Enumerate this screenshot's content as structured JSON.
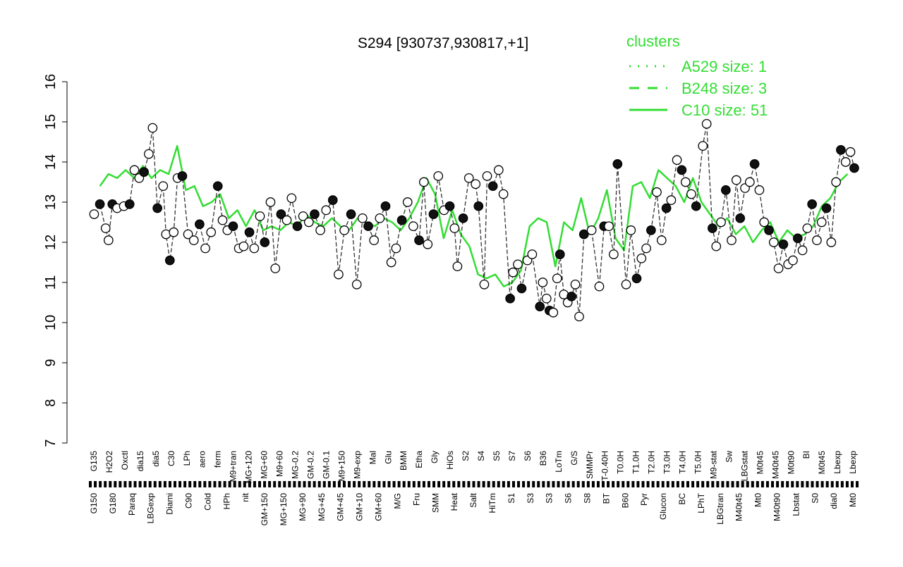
{
  "chart_data": {
    "type": "line",
    "title": "S294 [930737,930817,+1]",
    "xlabel": "",
    "ylabel": "",
    "ylim": [
      7,
      16
    ],
    "y_ticks": [
      7,
      8,
      9,
      10,
      11,
      12,
      13,
      14,
      15,
      16
    ],
    "grid": false,
    "legend_position": "top-right",
    "legend": {
      "title": "clusters",
      "color": "#33dd33",
      "entries": [
        {
          "label": "A529 size: 1",
          "style": "dotted"
        },
        {
          "label": "B248 size: 3",
          "style": "dashed"
        },
        {
          "label": "C10 size: 51",
          "style": "solid"
        }
      ]
    },
    "x_labels_upper": [
      "G135",
      "H2O2",
      "Oxctl",
      "dia15",
      "dia5",
      "C30",
      "LPh",
      "aero",
      "ferm",
      "M9+tran",
      "MG+120",
      "MG+60",
      "M9+60",
      "MG-0.2",
      "GM-0.2",
      "GM-0.1",
      "M9+150",
      "M9-exp",
      "Mal",
      "Glu",
      "BMM",
      "Etha",
      "Gly",
      "HiOs",
      "S2",
      "S4",
      "S5",
      "S7",
      "S6",
      "B36",
      "LoTm",
      "G/S",
      "SMMPr",
      "T-0.40H",
      "T0.0H",
      "T1.0H",
      "T2.0H",
      "T3.0H",
      "T4.0H",
      "T5.0H",
      "M9-stat",
      "Sw",
      "LBGstat",
      "M0t45",
      "M40t45",
      "M0t90",
      "BI",
      "M0t45",
      "Lbexp",
      "Lbexp"
    ],
    "x_labels_lower": [
      "G150",
      "G180",
      "Paraq",
      "LBGexp",
      "Diami",
      "C90",
      "Cold",
      "HPh",
      "nit",
      "GM+150",
      "MG+150",
      "MG+90",
      "MG+45",
      "GM+45",
      "GM+10",
      "GM+60",
      "M/G",
      "Fru",
      "SMM",
      "Heat",
      "Salt",
      "HiTm",
      "S1",
      "S3",
      "S3",
      "S6",
      "S8",
      "BT",
      "B60",
      "Pyr",
      "Glucon",
      "BC",
      "LPhT",
      "LBGtran",
      "M40t45",
      "Mt0",
      "M40t90",
      "Lbstat",
      "S0",
      "dia0",
      "Mt0"
    ],
    "series": [
      {
        "style": "solid",
        "values": [
          13.4,
          13.7,
          13.6,
          13.8,
          13.6,
          13.9,
          13.6,
          13.8,
          13.7,
          14.4,
          13.3,
          13.4,
          12.9,
          13.0,
          13.2,
          12.6,
          12.8,
          12.4,
          12.8,
          12.3,
          12.4,
          12.3,
          12.5,
          12.4,
          12.7,
          12.5,
          12.4,
          12.6,
          12.4,
          12.3,
          12.6,
          12.5,
          12.4,
          12.6,
          12.5,
          12.3,
          12.6,
          13.0,
          13.6,
          13.2,
          12.1,
          12.8,
          12.2,
          11.9,
          11.2,
          11.1,
          11.2,
          10.9,
          11.0,
          11.3,
          12.4,
          12.6,
          12.5,
          11.4,
          12.5,
          12.3,
          13.1,
          12.2,
          12.6,
          13.3,
          12.1,
          11.8,
          13.4,
          13.5,
          13.1,
          13.8,
          13.6,
          13.4,
          13.0,
          13.6,
          13.0,
          12.7,
          12.4,
          12.6,
          12.2,
          12.4,
          12.0,
          12.3,
          12.5,
          12.0,
          12.3,
          12.1,
          12.2,
          12.4,
          12.9,
          13.1,
          13.5,
          13.7
        ]
      }
    ],
    "points": [
      {
        "x": 0.4,
        "y": 12.7
      },
      {
        "x": 1.0,
        "y": 12.95
      },
      {
        "x": 1.6,
        "y": 12.35
      },
      {
        "x": 1.9,
        "y": 12.05
      },
      {
        "x": 2.3,
        "y": 12.95
      },
      {
        "x": 2.8,
        "y": 12.85
      },
      {
        "x": 3.5,
        "y": 12.9
      },
      {
        "x": 4.1,
        "y": 12.95
      },
      {
        "x": 4.6,
        "y": 13.8
      },
      {
        "x": 5.1,
        "y": 13.6
      },
      {
        "x": 5.6,
        "y": 13.75
      },
      {
        "x": 6.1,
        "y": 14.2
      },
      {
        "x": 6.5,
        "y": 14.85
      },
      {
        "x": 7.0,
        "y": 12.85
      },
      {
        "x": 7.6,
        "y": 13.4
      },
      {
        "x": 7.9,
        "y": 12.2
      },
      {
        "x": 8.3,
        "y": 11.55
      },
      {
        "x": 8.7,
        "y": 12.25
      },
      {
        "x": 9.1,
        "y": 13.6
      },
      {
        "x": 9.6,
        "y": 13.65
      },
      {
        "x": 10.2,
        "y": 12.2
      },
      {
        "x": 10.8,
        "y": 12.05
      },
      {
        "x": 11.4,
        "y": 12.45
      },
      {
        "x": 12.0,
        "y": 11.85
      },
      {
        "x": 12.6,
        "y": 12.25
      },
      {
        "x": 13.3,
        "y": 13.4
      },
      {
        "x": 13.8,
        "y": 12.55
      },
      {
        "x": 14.3,
        "y": 12.3
      },
      {
        "x": 14.9,
        "y": 12.4
      },
      {
        "x": 15.5,
        "y": 11.85
      },
      {
        "x": 16.0,
        "y": 11.9
      },
      {
        "x": 16.6,
        "y": 12.25
      },
      {
        "x": 17.1,
        "y": 11.85
      },
      {
        "x": 17.7,
        "y": 12.65
      },
      {
        "x": 18.2,
        "y": 12.0
      },
      {
        "x": 18.8,
        "y": 13.0
      },
      {
        "x": 19.3,
        "y": 11.35
      },
      {
        "x": 19.9,
        "y": 12.7
      },
      {
        "x": 20.5,
        "y": 12.55
      },
      {
        "x": 21.0,
        "y": 13.1
      },
      {
        "x": 21.6,
        "y": 12.4
      },
      {
        "x": 22.2,
        "y": 12.65
      },
      {
        "x": 22.8,
        "y": 12.5
      },
      {
        "x": 23.4,
        "y": 12.7
      },
      {
        "x": 24.0,
        "y": 12.3
      },
      {
        "x": 24.6,
        "y": 12.8
      },
      {
        "x": 25.3,
        "y": 13.05
      },
      {
        "x": 25.9,
        "y": 11.2
      },
      {
        "x": 26.5,
        "y": 12.3
      },
      {
        "x": 27.2,
        "y": 12.7
      },
      {
        "x": 27.8,
        "y": 10.95
      },
      {
        "x": 28.4,
        "y": 12.6
      },
      {
        "x": 29.0,
        "y": 12.4
      },
      {
        "x": 29.6,
        "y": 12.05
      },
      {
        "x": 30.2,
        "y": 12.6
      },
      {
        "x": 30.8,
        "y": 12.9
      },
      {
        "x": 31.4,
        "y": 11.5
      },
      {
        "x": 31.9,
        "y": 11.85
      },
      {
        "x": 32.5,
        "y": 12.55
      },
      {
        "x": 33.1,
        "y": 13.0
      },
      {
        "x": 33.7,
        "y": 12.4
      },
      {
        "x": 34.3,
        "y": 12.05
      },
      {
        "x": 34.8,
        "y": 13.5
      },
      {
        "x": 35.2,
        "y": 11.95
      },
      {
        "x": 35.8,
        "y": 12.7
      },
      {
        "x": 36.3,
        "y": 13.65
      },
      {
        "x": 36.9,
        "y": 12.8
      },
      {
        "x": 37.5,
        "y": 12.9
      },
      {
        "x": 38.0,
        "y": 12.35
      },
      {
        "x": 38.3,
        "y": 11.4
      },
      {
        "x": 38.9,
        "y": 12.6
      },
      {
        "x": 39.5,
        "y": 13.6
      },
      {
        "x": 40.2,
        "y": 13.45
      },
      {
        "x": 40.5,
        "y": 12.9
      },
      {
        "x": 41.1,
        "y": 10.95
      },
      {
        "x": 41.4,
        "y": 13.65
      },
      {
        "x": 42.0,
        "y": 13.4
      },
      {
        "x": 42.6,
        "y": 13.8
      },
      {
        "x": 43.1,
        "y": 13.2
      },
      {
        "x": 43.8,
        "y": 10.6
      },
      {
        "x": 44.1,
        "y": 11.25
      },
      {
        "x": 44.6,
        "y": 11.45
      },
      {
        "x": 45.0,
        "y": 10.85
      },
      {
        "x": 45.6,
        "y": 11.55
      },
      {
        "x": 46.1,
        "y": 11.7
      },
      {
        "x": 46.9,
        "y": 10.4
      },
      {
        "x": 47.2,
        "y": 11.0
      },
      {
        "x": 47.6,
        "y": 10.6
      },
      {
        "x": 47.9,
        "y": 10.3
      },
      {
        "x": 48.3,
        "y": 10.25
      },
      {
        "x": 48.7,
        "y": 11.1
      },
      {
        "x": 49.0,
        "y": 11.7
      },
      {
        "x": 49.4,
        "y": 10.7
      },
      {
        "x": 49.8,
        "y": 10.5
      },
      {
        "x": 50.2,
        "y": 10.65
      },
      {
        "x": 50.6,
        "y": 10.95
      },
      {
        "x": 51.0,
        "y": 10.15
      },
      {
        "x": 51.5,
        "y": 12.2
      },
      {
        "x": 52.3,
        "y": 12.3
      },
      {
        "x": 53.1,
        "y": 10.9
      },
      {
        "x": 53.6,
        "y": 12.4
      },
      {
        "x": 54.1,
        "y": 12.4
      },
      {
        "x": 54.6,
        "y": 11.7
      },
      {
        "x": 55.0,
        "y": 13.95
      },
      {
        "x": 55.9,
        "y": 10.95
      },
      {
        "x": 56.4,
        "y": 12.3
      },
      {
        "x": 57.0,
        "y": 11.1
      },
      {
        "x": 57.5,
        "y": 11.6
      },
      {
        "x": 58.0,
        "y": 11.85
      },
      {
        "x": 58.5,
        "y": 12.3
      },
      {
        "x": 59.1,
        "y": 13.25
      },
      {
        "x": 59.6,
        "y": 12.05
      },
      {
        "x": 60.1,
        "y": 12.85
      },
      {
        "x": 60.6,
        "y": 13.05
      },
      {
        "x": 61.2,
        "y": 14.05
      },
      {
        "x": 61.7,
        "y": 13.8
      },
      {
        "x": 62.1,
        "y": 13.5
      },
      {
        "x": 62.7,
        "y": 13.2
      },
      {
        "x": 63.2,
        "y": 12.9
      },
      {
        "x": 63.9,
        "y": 14.4
      },
      {
        "x": 64.3,
        "y": 14.95
      },
      {
        "x": 64.9,
        "y": 12.35
      },
      {
        "x": 65.3,
        "y": 11.9
      },
      {
        "x": 65.8,
        "y": 12.5
      },
      {
        "x": 66.3,
        "y": 13.3
      },
      {
        "x": 66.9,
        "y": 12.05
      },
      {
        "x": 67.4,
        "y": 13.55
      },
      {
        "x": 67.8,
        "y": 12.6
      },
      {
        "x": 68.3,
        "y": 13.35
      },
      {
        "x": 68.8,
        "y": 13.5
      },
      {
        "x": 69.3,
        "y": 13.95
      },
      {
        "x": 69.8,
        "y": 13.3
      },
      {
        "x": 70.3,
        "y": 12.5
      },
      {
        "x": 70.8,
        "y": 12.3
      },
      {
        "x": 71.3,
        "y": 12.0
      },
      {
        "x": 71.8,
        "y": 11.35
      },
      {
        "x": 72.3,
        "y": 11.95
      },
      {
        "x": 72.8,
        "y": 11.45
      },
      {
        "x": 73.3,
        "y": 11.55
      },
      {
        "x": 73.8,
        "y": 12.1
      },
      {
        "x": 74.3,
        "y": 11.8
      },
      {
        "x": 74.8,
        "y": 12.35
      },
      {
        "x": 75.3,
        "y": 12.95
      },
      {
        "x": 75.8,
        "y": 12.05
      },
      {
        "x": 76.3,
        "y": 12.5
      },
      {
        "x": 76.8,
        "y": 12.85
      },
      {
        "x": 77.3,
        "y": 12.0
      },
      {
        "x": 77.8,
        "y": 13.5
      },
      {
        "x": 78.3,
        "y": 14.3
      },
      {
        "x": 78.8,
        "y": 14.0
      },
      {
        "x": 79.3,
        "y": 14.25
      },
      {
        "x": 79.7,
        "y": 13.85
      }
    ]
  }
}
